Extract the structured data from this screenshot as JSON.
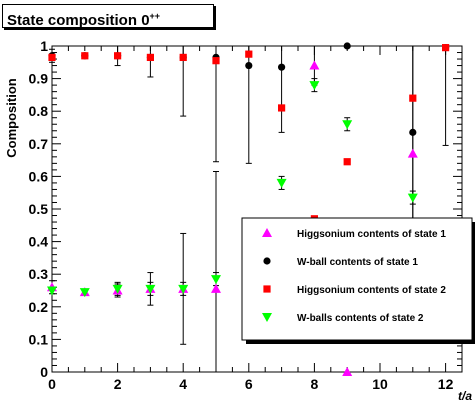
{
  "chart_data": {
    "type": "scatter",
    "title": "State composition",
    "title_superscript": "++",
    "title_state": "0",
    "ylabel": "Composition",
    "xlabel": "t/a",
    "xlim": [
      0,
      12.5
    ],
    "ylim": [
      0,
      1
    ],
    "x_ticks": [
      0,
      2,
      4,
      6,
      8,
      10,
      12
    ],
    "x_tick_labels": [
      "0",
      "2",
      "4",
      "6",
      "8",
      "10",
      "12"
    ],
    "y_ticks": [
      0,
      0.1,
      0.2,
      0.3,
      0.4,
      0.5,
      0.6,
      0.7,
      0.8,
      0.9,
      1
    ],
    "y_tick_labels": [
      "0",
      "0.1",
      "0.2",
      "0.3",
      "0.4",
      "0.5",
      "0.6",
      "0.7",
      "0.8",
      "0.9",
      "1"
    ],
    "grid": false,
    "legend_position": "bottom-right",
    "series": [
      {
        "name": "Higgsonium contents of state 1",
        "marker": "triangle-up",
        "color": "#ff00ff",
        "points": [
          {
            "x": 0,
            "y": 0.26,
            "err": 0.02
          },
          {
            "x": 1,
            "y": 0.245,
            "err": 0.01
          },
          {
            "x": 2,
            "y": 0.25,
            "err": 0.02
          },
          {
            "x": 3,
            "y": 0.255,
            "err": 0.05
          },
          {
            "x": 4,
            "y": 0.255,
            "err": 0.17
          },
          {
            "x": 5,
            "y": 0.255,
            "err": 0.36
          },
          {
            "x": 8,
            "y": 0.94,
            "err": 0.06
          },
          {
            "x": 9,
            "y": 0.0,
            "err": 0.0
          },
          {
            "x": 11,
            "y": 0.67,
            "err": 0.33
          }
        ]
      },
      {
        "name": "W-ball contents of state 1",
        "marker": "circle",
        "color": "#000000",
        "points": [
          {
            "x": 0,
            "y": 0.97,
            "err": 0.02
          },
          {
            "x": 1,
            "y": 0.97,
            "err": 0.01
          },
          {
            "x": 2,
            "y": 0.97,
            "err": 0.03
          },
          {
            "x": 3,
            "y": 0.965,
            "err": 0.06
          },
          {
            "x": 4,
            "y": 0.965,
            "err": 0.18
          },
          {
            "x": 5,
            "y": 0.965,
            "err": 0.32
          },
          {
            "x": 6,
            "y": 0.94,
            "err": 0.3
          },
          {
            "x": 7,
            "y": 0.935,
            "err": 0.2
          },
          {
            "x": 9,
            "y": 1.0,
            "err": 0.0
          },
          {
            "x": 11,
            "y": 0.735,
            "err": 0.3
          },
          {
            "x": 12,
            "y": 0.995,
            "err": 0.3
          }
        ]
      },
      {
        "name": "Higgsonium contents of state 2",
        "marker": "square",
        "color": "#ff0000",
        "points": [
          {
            "x": 0,
            "y": 0.965,
            "err": 0.01
          },
          {
            "x": 1,
            "y": 0.97,
            "err": 0.01
          },
          {
            "x": 2,
            "y": 0.97,
            "err": 0.01
          },
          {
            "x": 3,
            "y": 0.965,
            "err": 0.01
          },
          {
            "x": 4,
            "y": 0.965,
            "err": 0.01
          },
          {
            "x": 5,
            "y": 0.955,
            "err": 0.01
          },
          {
            "x": 6,
            "y": 0.975,
            "err": 0.01
          },
          {
            "x": 7,
            "y": 0.81,
            "err": 0.01
          },
          {
            "x": 8,
            "y": 0.47,
            "err": 0.01
          },
          {
            "x": 9,
            "y": 0.645,
            "err": 0.01
          },
          {
            "x": 11,
            "y": 0.84,
            "err": 0.01
          },
          {
            "x": 12,
            "y": 0.995,
            "err": 0.01
          }
        ]
      },
      {
        "name": "W-balls contents of state 2",
        "marker": "triangle-down",
        "color": "#00ff00",
        "points": [
          {
            "x": 0,
            "y": 0.25,
            "err": 0.01
          },
          {
            "x": 1,
            "y": 0.245,
            "err": 0.01
          },
          {
            "x": 2,
            "y": 0.255,
            "err": 0.02
          },
          {
            "x": 3,
            "y": 0.255,
            "err": 0.02
          },
          {
            "x": 4,
            "y": 0.255,
            "err": 0.02
          },
          {
            "x": 5,
            "y": 0.285,
            "err": 0.02
          },
          {
            "x": 7,
            "y": 0.58,
            "err": 0.02
          },
          {
            "x": 8,
            "y": 0.88,
            "err": 0.02
          },
          {
            "x": 9,
            "y": 0.76,
            "err": 0.02
          },
          {
            "x": 11,
            "y": 0.535,
            "err": 0.02
          }
        ]
      }
    ]
  }
}
